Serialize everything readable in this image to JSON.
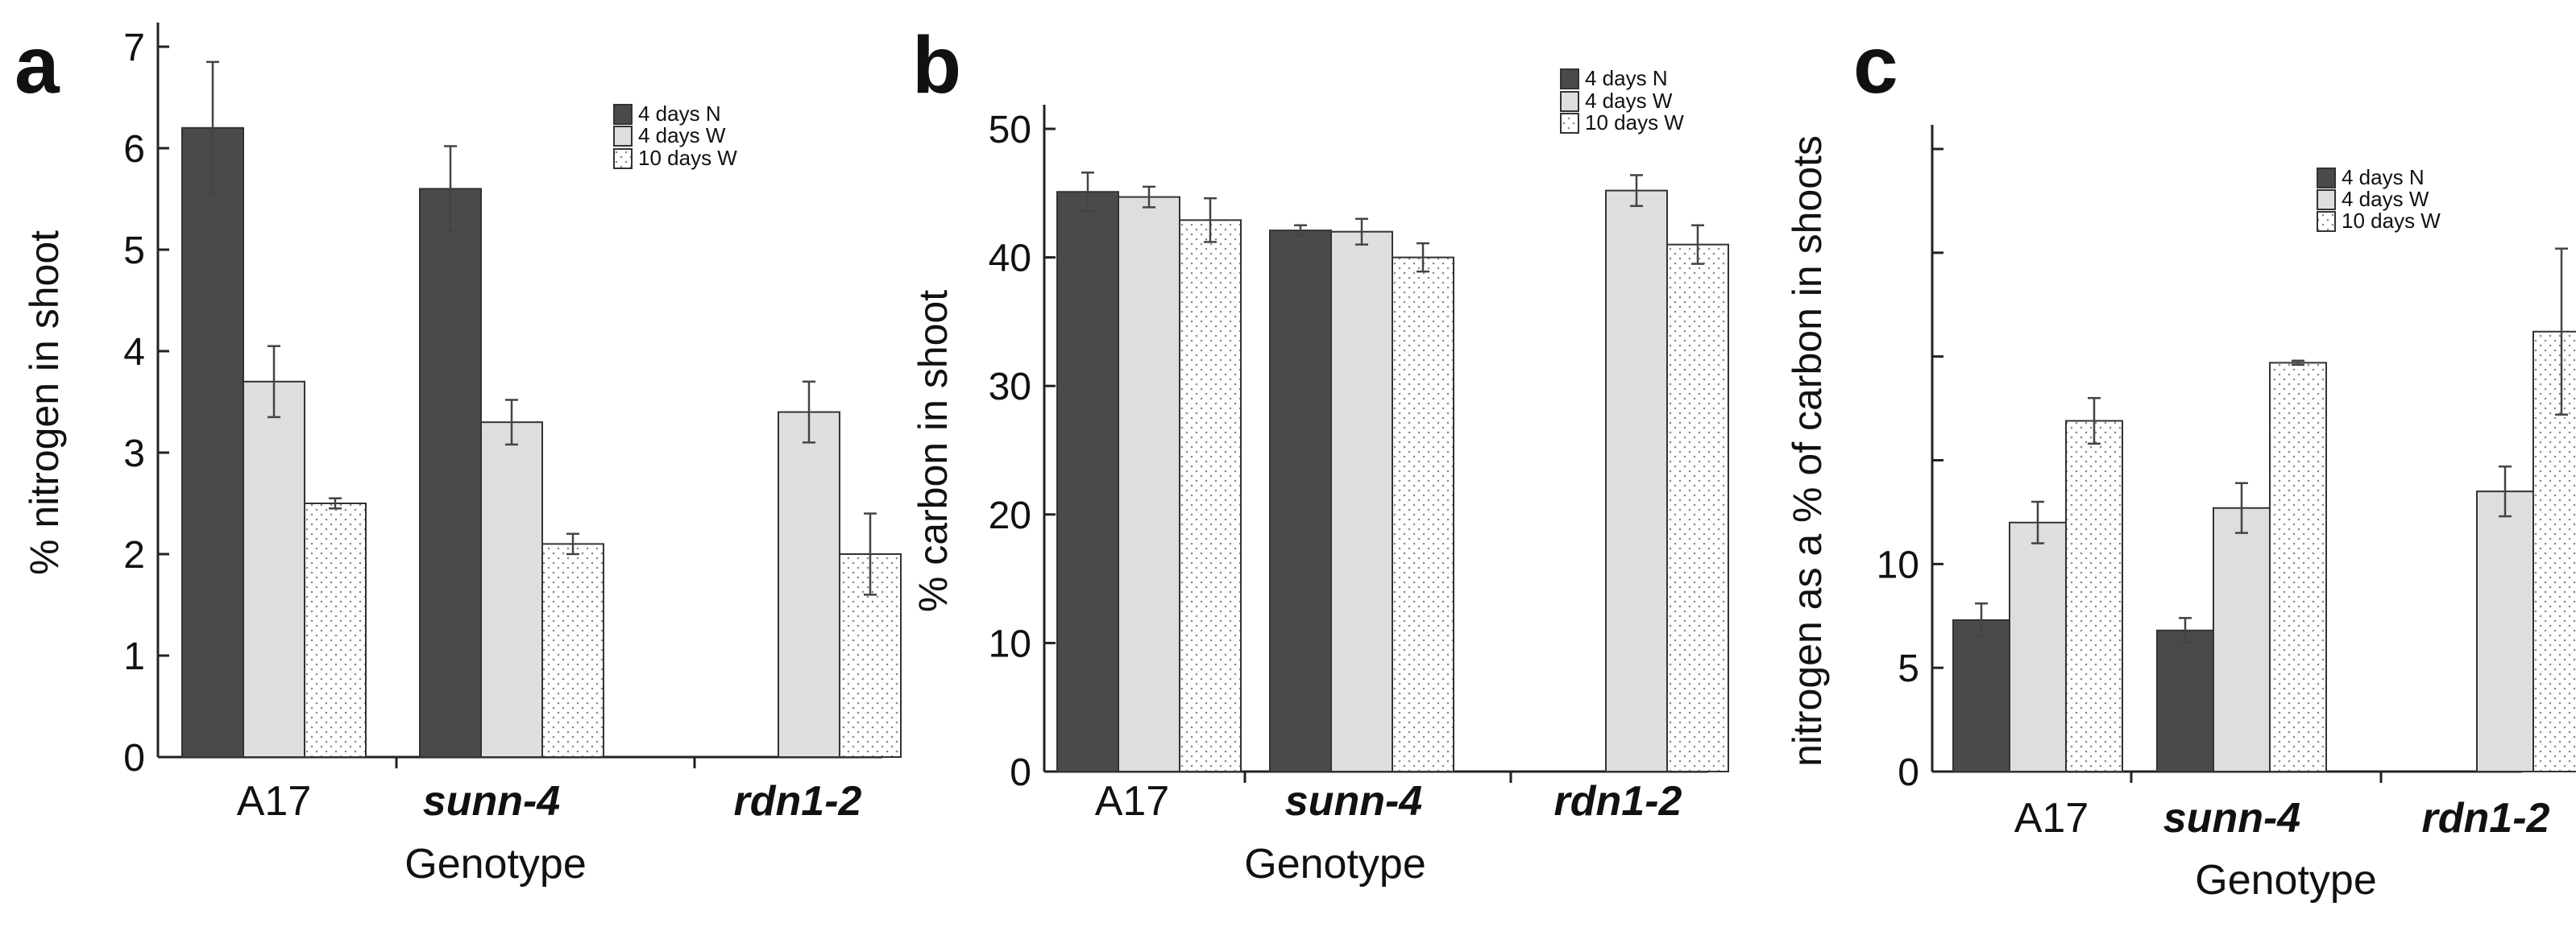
{
  "colors": {
    "series_N": "#4a4a4a",
    "series_W4": "#dedede",
    "series_W10": "#ffffff",
    "stipple": "#9a9a9a"
  },
  "chart_data": [
    {
      "type": "bar",
      "panel": "a",
      "title": "",
      "xlabel": "Genotype",
      "ylabel": "% nitrogen in shoot",
      "ylim": [
        0,
        7
      ],
      "yticks": [
        0,
        1,
        2,
        3,
        4,
        5,
        6,
        7
      ],
      "ytick_labels": [
        "0",
        "1",
        "2",
        "3",
        "4",
        "5",
        "6",
        "7"
      ],
      "categories": [
        "A17",
        "sunn-4",
        "rdn1-2"
      ],
      "legend": [
        "4 days N",
        "4 days W",
        "10 days W"
      ],
      "series": [
        {
          "name": "4 days N",
          "values": [
            6.2,
            5.6,
            null
          ],
          "errors": [
            0.65,
            0.42,
            null
          ]
        },
        {
          "name": "4 days W",
          "values": [
            3.7,
            3.3,
            3.4
          ],
          "errors": [
            0.35,
            0.22,
            0.3
          ]
        },
        {
          "name": "10 days W",
          "values": [
            2.5,
            2.1,
            2.0
          ],
          "errors": [
            0.05,
            0.1,
            0.4
          ]
        }
      ]
    },
    {
      "type": "bar",
      "panel": "b",
      "title": "",
      "xlabel": "Genotype",
      "ylabel": "% carbon in shoot",
      "ylim": [
        0,
        50
      ],
      "yticks": [
        0,
        10,
        20,
        30,
        40,
        50
      ],
      "ytick_labels": [
        "0",
        "10",
        "20",
        "30",
        "40",
        "50"
      ],
      "categories": [
        "A17",
        "sunn-4",
        "rdn1-2"
      ],
      "legend": [
        "4 days N",
        "4 days W",
        "10 days W"
      ],
      "series": [
        {
          "name": "4 days N",
          "values": [
            45.1,
            42.1,
            null
          ],
          "errors": [
            1.5,
            0.4,
            null
          ]
        },
        {
          "name": "4 days W",
          "values": [
            44.7,
            42.0,
            45.2
          ],
          "errors": [
            0.8,
            1.0,
            1.2
          ]
        },
        {
          "name": "10 days W",
          "values": [
            42.9,
            40.0,
            41.0
          ],
          "errors": [
            1.7,
            1.1,
            1.5
          ]
        }
      ]
    },
    {
      "type": "bar",
      "panel": "c",
      "title": "",
      "xlabel": "Genotype",
      "ylabel": "nitrogen as a % of carbon in shoots",
      "ylim": [
        0,
        30
      ],
      "yticks": [
        0,
        5,
        10,
        15,
        20,
        25,
        30
      ],
      "ytick_labels": [
        "0",
        "5",
        "10",
        "",
        "",
        "",
        ""
      ],
      "categories": [
        "A17",
        "sunn-4",
        "rdn1-2"
      ],
      "legend": [
        "4 days N",
        "4 days W",
        "10 days W"
      ],
      "series": [
        {
          "name": "4 days N",
          "values": [
            7.3,
            6.8,
            null
          ],
          "errors": [
            0.8,
            0.6,
            null
          ]
        },
        {
          "name": "4 days W",
          "values": [
            12.0,
            12.7,
            13.5
          ],
          "errors": [
            1.0,
            1.2,
            1.2
          ]
        },
        {
          "name": "10 days W",
          "values": [
            16.9,
            19.7,
            21.2
          ],
          "errors": [
            1.1,
            0.1,
            4.0
          ]
        }
      ]
    }
  ]
}
